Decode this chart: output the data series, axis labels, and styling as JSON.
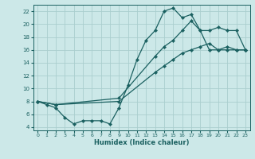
{
  "xlabel": "Humidex (Indice chaleur)",
  "bg_color": "#cce8e8",
  "grid_color": "#aacece",
  "line_color": "#1a6060",
  "xlim": [
    -0.5,
    23.5
  ],
  "ylim": [
    3.5,
    23
  ],
  "xticks": [
    0,
    1,
    2,
    3,
    4,
    5,
    6,
    7,
    8,
    9,
    10,
    11,
    12,
    13,
    14,
    15,
    16,
    17,
    18,
    19,
    20,
    21,
    22,
    23
  ],
  "yticks": [
    4,
    6,
    8,
    10,
    12,
    14,
    16,
    18,
    20,
    22
  ],
  "curve1_x": [
    0,
    1,
    2,
    3,
    4,
    5,
    6,
    7,
    8,
    9,
    10,
    11,
    12,
    13,
    14,
    15,
    16,
    17,
    18,
    19,
    20,
    21,
    22,
    23
  ],
  "curve1_y": [
    8,
    7.5,
    7,
    5.5,
    4.5,
    5,
    5,
    5,
    4.5,
    7,
    10.5,
    14.5,
    17.5,
    19,
    22,
    22.5,
    21,
    21.5,
    19,
    16,
    16,
    16.5,
    16,
    16
  ],
  "curve2_x": [
    0,
    2,
    9,
    13,
    14,
    15,
    16,
    17,
    18,
    19,
    20,
    21,
    22,
    23
  ],
  "curve2_y": [
    8,
    7.5,
    8.5,
    15,
    16.5,
    17.5,
    19,
    20.5,
    19,
    19,
    19.5,
    19,
    19,
    16
  ],
  "curve3_x": [
    0,
    2,
    9,
    13,
    14,
    15,
    16,
    17,
    18,
    19,
    20,
    21,
    22,
    23
  ],
  "curve3_y": [
    8,
    7.5,
    8,
    12.5,
    13.5,
    14.5,
    15.5,
    16,
    16.5,
    17,
    16,
    16,
    16,
    16
  ]
}
